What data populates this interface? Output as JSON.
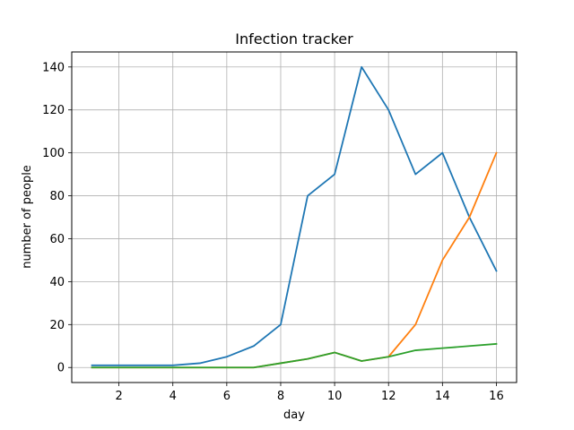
{
  "chart_data": {
    "type": "line",
    "title": "Infection tracker",
    "xlabel": "day",
    "ylabel": "number of people",
    "xlim": [
      0.25,
      16.75
    ],
    "ylim": [
      -7,
      147
    ],
    "xticks": [
      2,
      4,
      6,
      8,
      10,
      12,
      14,
      16
    ],
    "yticks": [
      0,
      20,
      40,
      60,
      80,
      100,
      120,
      140
    ],
    "grid": true,
    "legend": "none",
    "x": [
      1,
      2,
      3,
      4,
      5,
      6,
      7,
      8,
      9,
      10,
      11,
      12,
      13,
      14,
      15,
      16
    ],
    "series": [
      {
        "color": "#1f77b4",
        "values": [
          1,
          1,
          1,
          1,
          2,
          5,
          10,
          20,
          80,
          90,
          140,
          120,
          90,
          100,
          70,
          45
        ]
      },
      {
        "color": "#ff7f0e",
        "values": [
          0,
          0,
          0,
          0,
          0,
          0,
          0,
          2,
          4,
          7,
          3,
          5,
          20,
          50,
          70,
          100
        ]
      },
      {
        "color": "#2ca02c",
        "values": [
          0,
          0,
          0,
          0,
          0,
          0,
          0,
          2,
          4,
          7,
          3,
          5,
          8,
          9,
          10,
          11
        ]
      }
    ]
  }
}
